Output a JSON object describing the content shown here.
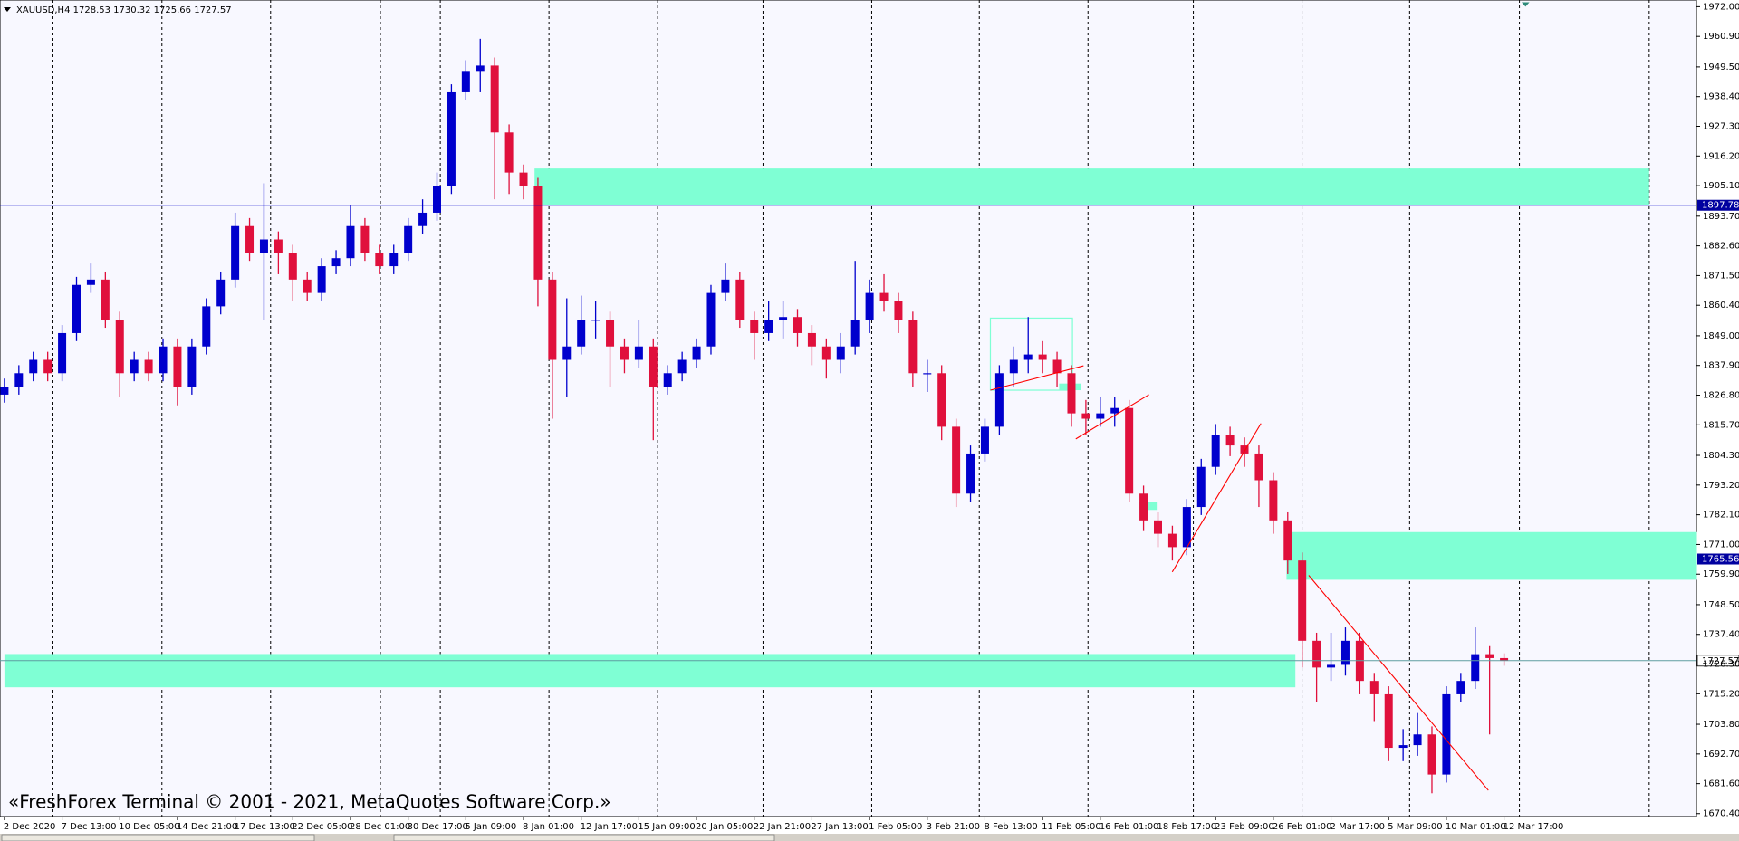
{
  "chart_data": {
    "type": "candlestick",
    "symbol_header": "XAUUSD,H4 1728.53 1730.32 1725.66 1727.57",
    "watermark": "«FreshForex Terminal © 2001 - 2021, MetaQuotes Software Corp.»",
    "up_color": "#0000cd",
    "down_color": "#e0103c",
    "categories": [
      "2 Dec 2020",
      null,
      null,
      null,
      "7 Dec 13:00",
      null,
      null,
      null,
      "10 Dec 05:00",
      null,
      null,
      null,
      "14 Dec 21:00",
      null,
      null,
      null,
      "17 Dec 13:00",
      null,
      null,
      null,
      "22 Dec 05:00",
      null,
      null,
      null,
      "28 Dec 01:00",
      null,
      null,
      null,
      "30 Dec 17:00",
      null,
      null,
      null,
      "5 Jan 09:00",
      null,
      null,
      null,
      "8 Jan 01:00",
      null,
      null,
      null,
      "12 Jan 17:00",
      null,
      null,
      null,
      "15 Jan 09:00",
      null,
      null,
      null,
      "20 Jan 05:00",
      null,
      null,
      null,
      "22 Jan 21:00",
      null,
      null,
      null,
      "27 Jan 13:00",
      null,
      null,
      null,
      "1 Feb 05:00",
      null,
      null,
      null,
      "3 Feb 21:00",
      null,
      null,
      null,
      "8 Feb 13:00",
      null,
      null,
      null,
      "11 Feb 05:00",
      null,
      null,
      null,
      "16 Feb 01:00",
      null,
      null,
      null,
      "18 Feb 17:00",
      null,
      null,
      null,
      "23 Feb 09:00",
      null,
      null,
      null,
      "26 Feb 01:00",
      null,
      null,
      null,
      "2 Mar 17:00",
      null,
      null,
      null,
      "5 Mar 09:00",
      null,
      null,
      null,
      "10 Mar 01:00",
      null,
      null,
      null,
      "12 Mar 17:00"
    ],
    "open": [
      1827,
      1830,
      1835,
      1840,
      1835,
      1850,
      1868,
      1870,
      1855,
      1835,
      1840,
      1835,
      1845,
      1830,
      1845,
      1860,
      1870,
      1890,
      1880,
      1885,
      1880,
      1870,
      1865,
      1875,
      1878,
      1890,
      1880,
      1875,
      1880,
      1890,
      1895,
      1905,
      1940,
      1948,
      1950,
      1925,
      1910,
      1905,
      1870,
      1840,
      1845,
      1855,
      1855,
      1845,
      1840,
      1845,
      1830,
      1835,
      1840,
      1845,
      1865,
      1870,
      1855,
      1850,
      1855,
      1856,
      1850,
      1845,
      1840,
      1845,
      1855,
      1865,
      1862,
      1855,
      1835,
      1835,
      1815,
      1790,
      1805,
      1815,
      1835,
      1840,
      1842,
      1840,
      1835,
      1820,
      1818,
      1820,
      1822,
      1790,
      1780,
      1775,
      1770,
      1785,
      1800,
      1812,
      1808,
      1805,
      1795,
      1780,
      1765,
      1735,
      1725,
      1726,
      1735,
      1720,
      1715,
      1695,
      1696,
      1700,
      1685,
      1715,
      1720,
      1730,
      1728.53
    ],
    "high": [
      1833,
      1838,
      1843,
      1843,
      1853,
      1871,
      1876,
      1873,
      1858,
      1843,
      1843,
      1848,
      1848,
      1848,
      1863,
      1873,
      1895,
      1893,
      1906,
      1888,
      1883,
      1873,
      1878,
      1881,
      1898,
      1893,
      1883,
      1883,
      1893,
      1900,
      1910,
      1943,
      1952,
      1960,
      1953,
      1928,
      1913,
      1908,
      1873,
      1863,
      1864,
      1862,
      1858,
      1848,
      1855,
      1848,
      1838,
      1843,
      1848,
      1868,
      1876,
      1873,
      1858,
      1862,
      1862,
      1859,
      1853,
      1848,
      1850,
      1877,
      1870,
      1872,
      1865,
      1858,
      1840,
      1838,
      1818,
      1808,
      1818,
      1838,
      1845,
      1856,
      1847,
      1843,
      1838,
      1825,
      1826,
      1826,
      1825,
      1793,
      1783,
      1778,
      1788,
      1803,
      1816,
      1815,
      1811,
      1808,
      1798,
      1783,
      1768,
      1738,
      1738,
      1740,
      1738,
      1723,
      1718,
      1702,
      1708,
      1703,
      1718,
      1723,
      1740,
      1733,
      1730.32
    ],
    "low": [
      1824,
      1827,
      1832,
      1832,
      1832,
      1847,
      1865,
      1852,
      1826,
      1832,
      1832,
      1832,
      1823,
      1827,
      1842,
      1857,
      1867,
      1877,
      1855,
      1872,
      1862,
      1862,
      1862,
      1872,
      1875,
      1877,
      1872,
      1872,
      1877,
      1887,
      1892,
      1902,
      1937,
      1940,
      1900,
      1902,
      1900,
      1860,
      1818,
      1826,
      1842,
      1848,
      1830,
      1835,
      1837,
      1810,
      1827,
      1832,
      1837,
      1842,
      1862,
      1852,
      1840,
      1847,
      1848,
      1845,
      1838,
      1833,
      1835,
      1842,
      1850,
      1858,
      1850,
      1830,
      1828,
      1810,
      1785,
      1787,
      1802,
      1812,
      1830,
      1835,
      1835,
      1830,
      1815,
      1812,
      1815,
      1815,
      1787,
      1776,
      1770,
      1765,
      1767,
      1782,
      1797,
      1804,
      1800,
      1785,
      1775,
      1760,
      1725,
      1712,
      1720,
      1722,
      1715,
      1705,
      1690,
      1690,
      1692,
      1678,
      1682,
      1712,
      1717,
      1700,
      1725.66
    ],
    "close": [
      1830,
      1835,
      1840,
      1835,
      1850,
      1868,
      1870,
      1855,
      1835,
      1840,
      1835,
      1845,
      1830,
      1845,
      1860,
      1870,
      1890,
      1880,
      1885,
      1880,
      1870,
      1865,
      1875,
      1878,
      1890,
      1880,
      1875,
      1880,
      1890,
      1895,
      1905,
      1940,
      1948,
      1950,
      1925,
      1910,
      1905,
      1870,
      1840,
      1845,
      1855,
      1855,
      1845,
      1840,
      1845,
      1830,
      1835,
      1840,
      1845,
      1865,
      1870,
      1855,
      1850,
      1855,
      1856,
      1850,
      1845,
      1840,
      1845,
      1855,
      1865,
      1862,
      1855,
      1835,
      1835,
      1815,
      1790,
      1805,
      1815,
      1835,
      1840,
      1842,
      1840,
      1835,
      1820,
      1818,
      1820,
      1822,
      1790,
      1780,
      1775,
      1770,
      1785,
      1800,
      1812,
      1808,
      1805,
      1795,
      1780,
      1765,
      1735,
      1725,
      1726,
      1735,
      1720,
      1715,
      1695,
      1696,
      1700,
      1685,
      1715,
      1720,
      1730,
      1728.53,
      1727.57
    ],
    "hlines": [
      1897.78,
      1765.56
    ],
    "last_price": 1727.57,
    "ylim": [
      1669.3,
      1974.5
    ],
    "yticks": [
      {
        "value": 1972.0,
        "label": "1972.00"
      },
      {
        "value": 1960.9,
        "label": "1960.90"
      },
      {
        "value": 1949.5,
        "label": "1949.50"
      },
      {
        "value": 1938.4,
        "label": "1938.40"
      },
      {
        "value": 1927.3,
        "label": "1927.30"
      },
      {
        "value": 1916.2,
        "label": "1916.20"
      },
      {
        "value": 1905.1,
        "label": "1905.10"
      },
      {
        "value": 1893.7,
        "label": "1893.70"
      },
      {
        "value": 1882.6,
        "label": "1882.60"
      },
      {
        "value": 1871.5,
        "label": "1871.50"
      },
      {
        "value": 1860.4,
        "label": "1860.40"
      },
      {
        "value": 1849.0,
        "label": "1849.00"
      },
      {
        "value": 1837.9,
        "label": "1837.90"
      },
      {
        "value": 1826.8,
        "label": "1826.80"
      },
      {
        "value": 1815.7,
        "label": "1815.70"
      },
      {
        "value": 1804.3,
        "label": "1804.30"
      },
      {
        "value": 1793.2,
        "label": "1793.20"
      },
      {
        "value": 1782.1,
        "label": "1782.10"
      },
      {
        "value": 1771.0,
        "label": "1771.00"
      },
      {
        "value": 1759.9,
        "label": "1759.90"
      },
      {
        "value": 1748.5,
        "label": "1748.50"
      },
      {
        "value": 1737.4,
        "label": "1737.40"
      },
      {
        "value": 1726.3,
        "label": "1726.30"
      },
      {
        "value": 1715.2,
        "label": "1715.20"
      },
      {
        "value": 1703.8,
        "label": "1703.80"
      },
      {
        "value": 1692.7,
        "label": "1692.70"
      },
      {
        "value": 1681.6,
        "label": "1681.60"
      },
      {
        "value": 1670.4,
        "label": "1670.40"
      }
    ]
  }
}
